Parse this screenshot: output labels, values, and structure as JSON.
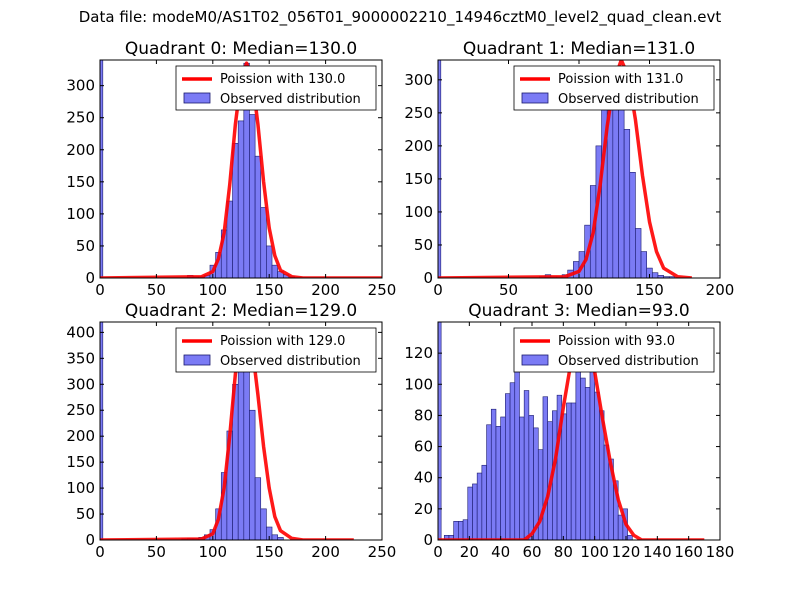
{
  "page_title": "Data file: modeM0/AS1T02_056T01_9000002210_14946cztM0_level2_quad_clean.evt",
  "colors": {
    "poisson": "#ff0000",
    "hist_fill": "#7b7bf5",
    "hist_edge": "#1a1a6e",
    "axes": "#000000"
  },
  "legend_labels": {
    "observed": "Observed distribution"
  },
  "chart_data": [
    {
      "type": "bar",
      "title": "Quadrant 0: Median=130.0",
      "poisson_label": "Poission with 130.0",
      "legend_position": "top-right",
      "xlim": [
        0,
        250
      ],
      "ylim": [
        0,
        340
      ],
      "xticks": [
        0,
        50,
        100,
        150,
        200,
        250
      ],
      "yticks": [
        0,
        50,
        100,
        150,
        200,
        250,
        300
      ],
      "edge_bar": {
        "x": 0,
        "width": 2.5,
        "value": 340
      },
      "bin_start": 77.5,
      "bin_width": 5,
      "values": [
        4,
        2,
        2,
        4,
        20,
        40,
        75,
        120,
        210,
        245,
        335,
        255,
        190,
        110,
        50,
        20,
        10,
        5,
        2
      ],
      "poisson": {
        "x": [
          0,
          90,
          100,
          105,
          110,
          115,
          120,
          125,
          130,
          135,
          140,
          145,
          150,
          155,
          160,
          170,
          180,
          250
        ],
        "y": [
          0,
          2,
          10,
          30,
          70,
          145,
          240,
          310,
          335,
          310,
          240,
          150,
          78,
          35,
          12,
          2,
          0,
          0
        ]
      }
    },
    {
      "type": "bar",
      "title": "Quadrant 1: Median=131.0",
      "poisson_label": "Poission with 131.0",
      "legend_position": "top-right",
      "xlim": [
        0,
        200
      ],
      "ylim": [
        0,
        330
      ],
      "xticks": [
        0,
        50,
        100,
        150,
        200
      ],
      "yticks": [
        0,
        50,
        100,
        150,
        200,
        250,
        300
      ],
      "edge_bar": {
        "x": 0,
        "width": 2,
        "value": 330
      },
      "bin_start": 72,
      "bin_width": 4,
      "values": [
        2,
        5,
        2,
        2,
        5,
        12,
        25,
        40,
        80,
        140,
        200,
        255,
        285,
        310,
        260,
        225,
        160,
        75,
        40,
        15,
        8,
        4,
        2,
        2
      ],
      "poisson": {
        "x": [
          0,
          90,
          100,
          105,
          110,
          115,
          120,
          125,
          130,
          135,
          140,
          145,
          150,
          155,
          160,
          170,
          180
        ],
        "y": [
          0,
          2,
          10,
          28,
          68,
          140,
          230,
          300,
          330,
          305,
          240,
          155,
          85,
          40,
          15,
          2,
          0
        ]
      }
    },
    {
      "type": "bar",
      "title": "Quadrant 2: Median=129.0",
      "poisson_label": "Poission with 129.0",
      "legend_position": "top-right",
      "xlim": [
        0,
        250
      ],
      "ylim": [
        0,
        420
      ],
      "xticks": [
        0,
        50,
        100,
        150,
        200,
        250
      ],
      "yticks": [
        0,
        50,
        100,
        150,
        200,
        250,
        300,
        350,
        400
      ],
      "edge_bar": {
        "x": 0,
        "width": 2.5,
        "value": 420
      },
      "bin_start": 72.5,
      "bin_width": 5,
      "values": [
        2,
        3,
        3,
        5,
        10,
        20,
        60,
        130,
        210,
        300,
        390,
        330,
        250,
        120,
        60,
        25,
        10,
        5
      ],
      "poisson": {
        "x": [
          0,
          90,
          100,
          105,
          110,
          115,
          120,
          125,
          130,
          135,
          140,
          145,
          150,
          155,
          160,
          170,
          180,
          225
        ],
        "y": [
          0,
          2,
          12,
          40,
          100,
          200,
          320,
          390,
          405,
          370,
          280,
          180,
          100,
          45,
          18,
          3,
          0,
          0
        ]
      }
    },
    {
      "type": "bar",
      "title": "Quadrant 3: Median=93.0",
      "poisson_label": "Poission with 93.0",
      "legend_position": "top-right",
      "xlim": [
        0,
        180
      ],
      "ylim": [
        0,
        140
      ],
      "xticks": [
        0,
        20,
        40,
        60,
        80,
        100,
        120,
        140,
        160,
        180
      ],
      "yticks": [
        0,
        20,
        40,
        60,
        80,
        100,
        120
      ],
      "edge_bar": {
        "x": 0,
        "width": 2,
        "value": 140
      },
      "bin_start": 4,
      "bin_width": 3,
      "values": [
        3,
        3,
        12,
        12,
        13,
        34,
        36,
        43,
        48,
        74,
        84,
        73,
        79,
        94,
        101,
        111,
        79,
        96,
        80,
        72,
        58,
        92,
        76,
        83,
        93,
        81,
        88,
        88,
        112,
        104,
        98,
        119,
        95,
        83,
        61,
        52,
        38,
        16,
        20,
        3
      ],
      "poisson": {
        "x": [
          0,
          55,
          60,
          65,
          70,
          75,
          80,
          85,
          90,
          95,
          100,
          105,
          110,
          115,
          120,
          125,
          130,
          170
        ],
        "y": [
          0,
          0,
          4,
          12,
          28,
          52,
          85,
          115,
          132,
          128,
          108,
          78,
          50,
          26,
          10,
          3,
          0,
          0
        ]
      }
    }
  ]
}
